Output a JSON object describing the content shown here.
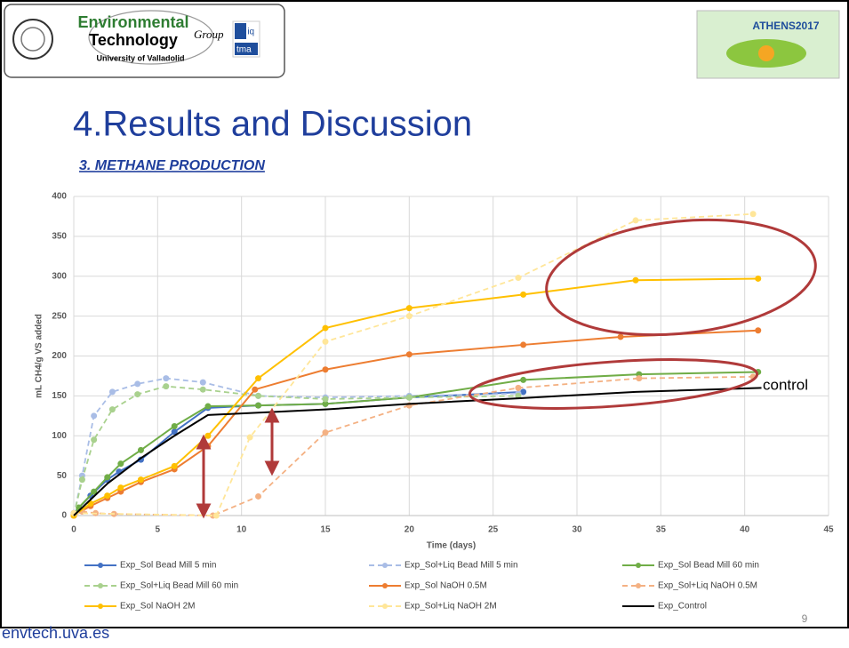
{
  "header": {
    "logo_line1": "Environmental",
    "logo_line2": "Technology",
    "logo_group": "Group",
    "logo_university": "University of Valladolid",
    "diq": "d iq",
    "tma": "tma",
    "event": "ATHENS2017"
  },
  "title": "4.Results and Discussion",
  "subtitle": "3. METHANE PRODUCTION",
  "page_number": "9",
  "footer": "envtech.uva.es",
  "chart_data": {
    "type": "line",
    "xlabel": "Time (days)",
    "ylabel": "mL CH4/g VS added",
    "xlim": [
      0,
      45
    ],
    "xticks": [
      0,
      5,
      10,
      15,
      20,
      25,
      30,
      35,
      40,
      45
    ],
    "ylim": [
      0,
      400
    ],
    "yticks": [
      0,
      50,
      100,
      150,
      200,
      250,
      300,
      350,
      400
    ],
    "annotation": "control",
    "series": [
      {
        "name": "Exp_Sol Bead Mill 5 min",
        "color": "#4472c4",
        "dashed": false,
        "marker": true,
        "x": [
          0,
          1,
          2,
          2.7,
          4,
          6,
          8,
          11,
          15,
          20,
          26.8
        ],
        "values": [
          3,
          25,
          45,
          55,
          70,
          105,
          135,
          138,
          140,
          148,
          155
        ]
      },
      {
        "name": "Exp_Sol+Liq Bead Mill 5 min",
        "color": "#a9bde6",
        "dashed": true,
        "marker": true,
        "x": [
          0,
          0.5,
          1.2,
          2.3,
          3.8,
          5.5,
          7.7,
          11,
          15,
          20,
          26.5
        ],
        "values": [
          0,
          50,
          125,
          155,
          165,
          172,
          167,
          150,
          148,
          150,
          153
        ]
      },
      {
        "name": "Exp_Sol Bead Mill 60 min",
        "color": "#70ad47",
        "dashed": false,
        "marker": true,
        "x": [
          0,
          0.3,
          1.2,
          2,
          2.8,
          4,
          6,
          8,
          11,
          15,
          20,
          26.8,
          33.7,
          40.8
        ],
        "values": [
          0,
          10,
          30,
          48,
          65,
          82,
          112,
          137,
          138,
          140,
          148,
          170,
          177,
          180
        ]
      },
      {
        "name": "Exp_Sol+Liq Bead Mill 60 min",
        "color": "#a9d18e",
        "dashed": true,
        "marker": true,
        "x": [
          0,
          0.5,
          1.2,
          2.3,
          3.8,
          5.5,
          7.7,
          11,
          15,
          20,
          26.5
        ],
        "values": [
          0,
          45,
          95,
          133,
          152,
          162,
          158,
          150,
          146,
          148,
          150
        ]
      },
      {
        "name": "Exp_Sol NaOH 0.5M",
        "color": "#ed7d31",
        "dashed": false,
        "marker": true,
        "x": [
          0,
          1,
          2,
          2.8,
          4,
          6,
          8,
          10.8,
          15,
          20,
          26.8,
          32.6,
          40.8
        ],
        "values": [
          0,
          12,
          22,
          30,
          42,
          58,
          87,
          158,
          183,
          202,
          214,
          224,
          232
        ]
      },
      {
        "name": "Exp_Sol+Liq NaOH 0.5M",
        "color": "#f4b183",
        "dashed": true,
        "marker": true,
        "x": [
          0,
          0.5,
          1.3,
          2.4,
          8.3,
          11,
          15,
          20,
          26.5,
          33.7,
          40.5
        ],
        "values": [
          0,
          5,
          3,
          2,
          0,
          24,
          104,
          138,
          160,
          172,
          174
        ]
      },
      {
        "name": "Exp_Sol NaOH 2M",
        "color": "#ffc000",
        "dashed": false,
        "marker": true,
        "x": [
          0,
          1,
          2,
          2.8,
          4,
          6,
          8,
          11,
          15,
          20,
          26.8,
          33.5,
          40.8
        ],
        "values": [
          0,
          15,
          25,
          35,
          45,
          62,
          100,
          172,
          235,
          260,
          277,
          295,
          297
        ]
      },
      {
        "name": "Exp_Sol+Liq NaOH 2M",
        "color": "#ffe699",
        "dashed": true,
        "marker": true,
        "x": [
          0,
          8.5,
          10.5,
          15,
          20,
          26.5,
          33.5,
          40.5
        ],
        "values": [
          3,
          0,
          98,
          218,
          250,
          298,
          370,
          378
        ]
      },
      {
        "name": "Exp_Control",
        "color": "#000000",
        "dashed": false,
        "marker": false,
        "x": [
          0,
          2,
          4,
          6,
          8,
          15,
          20,
          26.5,
          33.5,
          41
        ],
        "values": [
          0,
          40,
          72,
          100,
          126,
          133,
          140,
          147,
          155,
          160
        ]
      }
    ]
  }
}
